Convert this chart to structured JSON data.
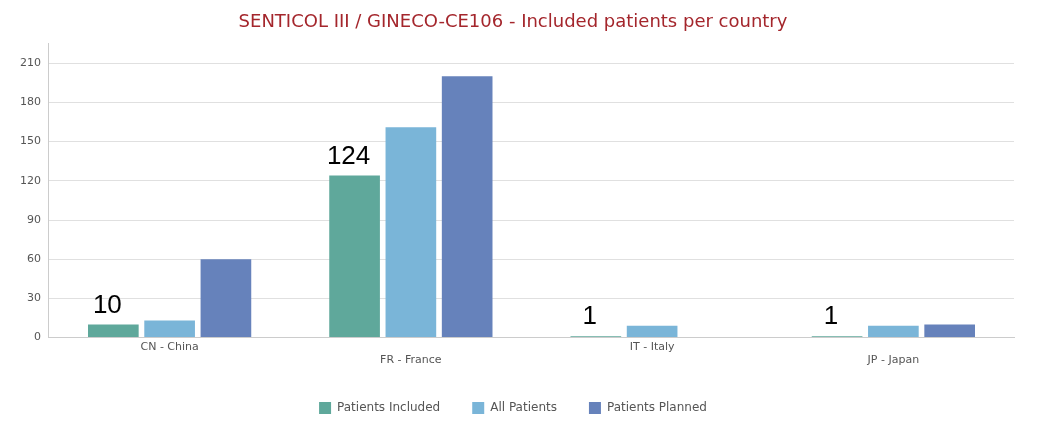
{
  "chart_data": {
    "type": "bar",
    "title": "SENTICOL III / GINECO-CE106 - Included patients per country",
    "categories": [
      "CN - China",
      "FR - France",
      "IT - Italy",
      "JP - Japan"
    ],
    "series": [
      {
        "name": "Patients Included",
        "color": "#5fa89b",
        "values": [
          10,
          124,
          1,
          1
        ],
        "value_labels": [
          "10",
          "124",
          "1",
          "1"
        ]
      },
      {
        "name": "All Patients",
        "color": "#7ab5d8",
        "values": [
          13,
          161,
          9,
          9
        ]
      },
      {
        "name": "Patients Planned",
        "color": "#6682bb",
        "values": [
          60,
          200,
          null,
          10
        ]
      }
    ],
    "ylim": [
      0,
      225
    ],
    "yticks": [
      0,
      30,
      60,
      90,
      120,
      150,
      180,
      210
    ],
    "grid": "y",
    "legend": "bottom"
  }
}
